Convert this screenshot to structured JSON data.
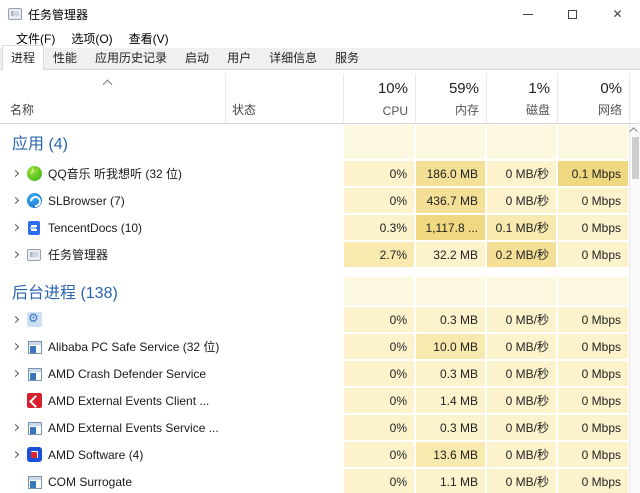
{
  "window": {
    "title": "任务管理器"
  },
  "menu": [
    "文件(F)",
    "选项(O)",
    "查看(V)"
  ],
  "tabs": [
    {
      "label": "进程",
      "active": true
    },
    {
      "label": "性能",
      "active": false
    },
    {
      "label": "应用历史记录",
      "active": false
    },
    {
      "label": "启动",
      "active": false
    },
    {
      "label": "用户",
      "active": false
    },
    {
      "label": "详细信息",
      "active": false
    },
    {
      "label": "服务",
      "active": false
    }
  ],
  "columns": {
    "name": "名称",
    "status": "状态",
    "cpu": {
      "pct": "10%",
      "label": "CPU"
    },
    "mem": {
      "pct": "59%",
      "label": "内存"
    },
    "disk": {
      "pct": "1%",
      "label": "磁盘"
    },
    "net": {
      "pct": "0%",
      "label": "网络"
    }
  },
  "rows": [
    {
      "type": "section",
      "label": "应用 (4)",
      "cells": {
        "cpu": [
          "",
          0
        ],
        "mem": [
          "",
          0
        ],
        "disk": [
          "",
          0
        ],
        "net": [
          "",
          0
        ]
      }
    },
    {
      "type": "process",
      "name": "QQ音乐 听我想听 (32 位)",
      "icon": "qq-music-icon",
      "expander": true,
      "cells": {
        "cpu": [
          "0%",
          1
        ],
        "mem": [
          "186.0 MB",
          3
        ],
        "disk": [
          "0 MB/秒",
          1
        ],
        "net": [
          "0.1 Mbps",
          4
        ]
      }
    },
    {
      "type": "process",
      "name": "SLBrowser (7)",
      "icon": "slbrowser-icon",
      "expander": true,
      "cells": {
        "cpu": [
          "0%",
          1
        ],
        "mem": [
          "436.7 MB",
          3
        ],
        "disk": [
          "0 MB/秒",
          1
        ],
        "net": [
          "0 Mbps",
          1
        ]
      }
    },
    {
      "type": "process",
      "name": "TencentDocs (10)",
      "icon": "tencentdocs-icon",
      "expander": true,
      "cells": {
        "cpu": [
          "0.3%",
          1
        ],
        "mem": [
          "1,117.8 ...",
          4
        ],
        "disk": [
          "0.1 MB/秒",
          2
        ],
        "net": [
          "0 Mbps",
          1
        ]
      }
    },
    {
      "type": "process",
      "name": "任务管理器",
      "icon": "taskmgr-icon",
      "expander": true,
      "cells": {
        "cpu": [
          "2.7%",
          2
        ],
        "mem": [
          "32.2 MB",
          1
        ],
        "disk": [
          "0.2 MB/秒",
          3
        ],
        "net": [
          "0 Mbps",
          1
        ]
      }
    },
    {
      "type": "section",
      "label": "后台进程 (138)",
      "gap": true,
      "cells": {
        "cpu": [
          "",
          0
        ],
        "mem": [
          "",
          0
        ],
        "disk": [
          "",
          0
        ],
        "net": [
          "",
          0
        ]
      }
    },
    {
      "type": "process",
      "name": "",
      "icon": "gear-icon",
      "expander": true,
      "cells": {
        "cpu": [
          "0%",
          1
        ],
        "mem": [
          "0.3 MB",
          1
        ],
        "disk": [
          "0 MB/秒",
          1
        ],
        "net": [
          "0 Mbps",
          1
        ]
      }
    },
    {
      "type": "process",
      "name": "Alibaba PC Safe Service (32 位)",
      "icon": "exe-window-icon",
      "expander": true,
      "cells": {
        "cpu": [
          "0%",
          1
        ],
        "mem": [
          "10.0 MB",
          2
        ],
        "disk": [
          "0 MB/秒",
          1
        ],
        "net": [
          "0 Mbps",
          1
        ]
      }
    },
    {
      "type": "process",
      "name": "AMD Crash Defender Service",
      "icon": "exe-window-icon",
      "expander": true,
      "cells": {
        "cpu": [
          "0%",
          1
        ],
        "mem": [
          "0.3 MB",
          1
        ],
        "disk": [
          "0 MB/秒",
          1
        ],
        "net": [
          "0 Mbps",
          1
        ]
      }
    },
    {
      "type": "process",
      "name": "AMD External Events Client ...",
      "icon": "amd-red-icon",
      "expander": false,
      "cells": {
        "cpu": [
          "0%",
          1
        ],
        "mem": [
          "1.4 MB",
          1
        ],
        "disk": [
          "0 MB/秒",
          1
        ],
        "net": [
          "0 Mbps",
          1
        ]
      }
    },
    {
      "type": "process",
      "name": "AMD External Events Service ...",
      "icon": "exe-window-icon",
      "expander": true,
      "cells": {
        "cpu": [
          "0%",
          1
        ],
        "mem": [
          "0.3 MB",
          1
        ],
        "disk": [
          "0 MB/秒",
          1
        ],
        "net": [
          "0 Mbps",
          1
        ]
      }
    },
    {
      "type": "process",
      "name": "AMD Software (4)",
      "icon": "amd-blue-icon",
      "expander": true,
      "cells": {
        "cpu": [
          "0%",
          1
        ],
        "mem": [
          "13.6 MB",
          2
        ],
        "disk": [
          "0 MB/秒",
          1
        ],
        "net": [
          "0 Mbps",
          1
        ]
      }
    },
    {
      "type": "process",
      "name": "COM Surrogate",
      "icon": "exe-window-icon",
      "expander": false,
      "cells": {
        "cpu": [
          "0%",
          1
        ],
        "mem": [
          "1.1 MB",
          1
        ],
        "disk": [
          "0 MB/秒",
          1
        ],
        "net": [
          "0 Mbps",
          1
        ]
      }
    }
  ],
  "colors": {
    "section_blue": "#2965ae",
    "heat": [
      "#fdf8e0",
      "#fcf3cd",
      "#f8eaae",
      "#f3e096",
      "#efd87f"
    ]
  }
}
